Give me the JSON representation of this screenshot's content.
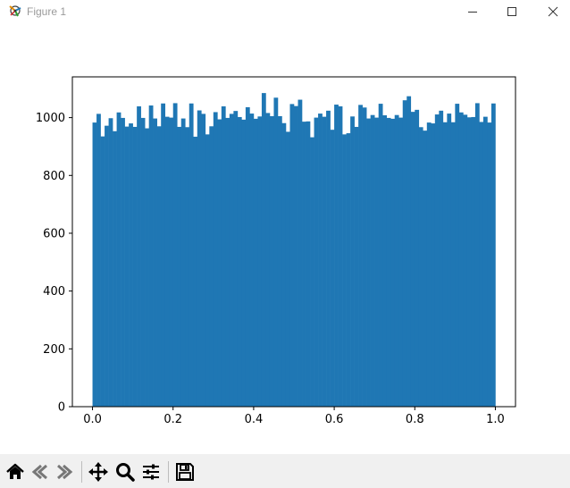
{
  "window": {
    "title": "Figure 1",
    "icons": [
      "matplotlib-icon",
      "minimize-icon",
      "maximize-icon",
      "close-icon"
    ]
  },
  "toolbar": {
    "buttons": [
      "home-icon",
      "back-icon",
      "forward-icon",
      "pan-icon",
      "zoom-icon",
      "configure-subplots-icon",
      "save-icon"
    ]
  },
  "chart_data": {
    "type": "bar",
    "title": "",
    "xlabel": "",
    "ylabel": "",
    "xlim": [
      -0.05,
      1.05
    ],
    "ylim": [
      0,
      1141
    ],
    "bin_range": [
      0,
      1
    ],
    "bins": 100,
    "x_ticks": [
      "0.0",
      "0.2",
      "0.4",
      "0.6",
      "0.8",
      "1.0"
    ],
    "y_ticks": [
      "0",
      "200",
      "400",
      "600",
      "800",
      "1000"
    ],
    "grid": false,
    "legend": "none",
    "bar_color": "#1f77b4",
    "values": [
      983,
      1013,
      935,
      972,
      998,
      953,
      1018,
      999,
      969,
      980,
      968,
      1039,
      999,
      963,
      1042,
      997,
      970,
      1049,
      1003,
      1000,
      1050,
      968,
      997,
      967,
      1049,
      934,
      1025,
      1013,
      942,
      970,
      1019,
      994,
      1039,
      999,
      1013,
      1023,
      1002,
      993,
      1036,
      1014,
      996,
      1004,
      1085,
      1016,
      1005,
      1069,
      1005,
      981,
      951,
      1047,
      1040,
      1062,
      986,
      987,
      932,
      1000,
      1014,
      1003,
      1024,
      958,
      1045,
      1039,
      942,
      946,
      1004,
      968,
      1044,
      1035,
      997,
      1009,
      1000,
      1048,
      1008,
      999,
      996,
      1009,
      1000,
      1060,
      1074,
      1020,
      1027,
      967,
      955,
      983,
      980,
      1011,
      1024,
      984,
      1014,
      984,
      1048,
      1018,
      1010,
      1001,
      1002,
      1050,
      985,
      1003,
      983,
      1049
    ]
  }
}
